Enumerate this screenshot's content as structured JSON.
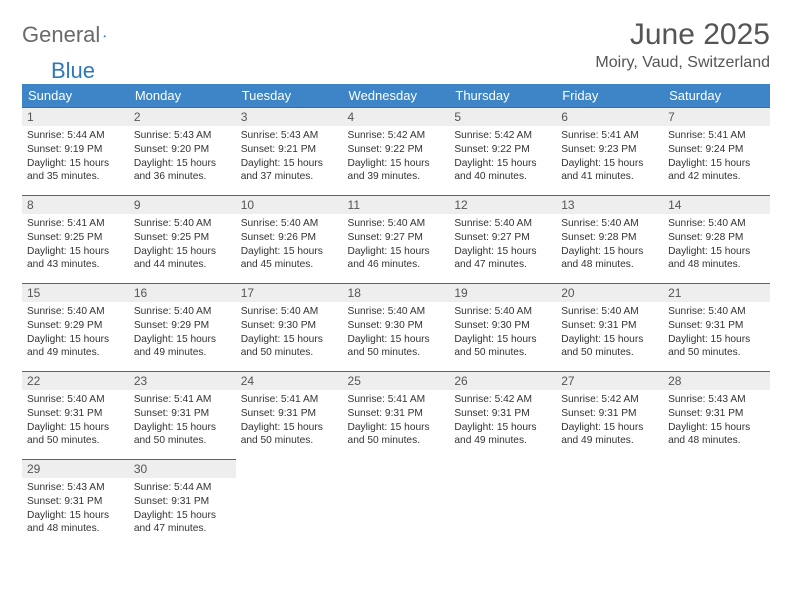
{
  "brand": {
    "part1": "General",
    "part2": "Blue"
  },
  "title": "June 2025",
  "location": "Moiry, Vaud, Switzerland",
  "colors": {
    "header_bg": "#3d85c6",
    "daynum_bg": "#eeeeee",
    "daynum_border": "#2f6fa8",
    "text": "#333333",
    "muted": "#555555",
    "brand_blue": "#2f78bd"
  },
  "weekdays": [
    "Sunday",
    "Monday",
    "Tuesday",
    "Wednesday",
    "Thursday",
    "Friday",
    "Saturday"
  ],
  "days": [
    {
      "n": 1,
      "sr": "5:44 AM",
      "ss": "9:19 PM",
      "dl": "15 hours and 35 minutes."
    },
    {
      "n": 2,
      "sr": "5:43 AM",
      "ss": "9:20 PM",
      "dl": "15 hours and 36 minutes."
    },
    {
      "n": 3,
      "sr": "5:43 AM",
      "ss": "9:21 PM",
      "dl": "15 hours and 37 minutes."
    },
    {
      "n": 4,
      "sr": "5:42 AM",
      "ss": "9:22 PM",
      "dl": "15 hours and 39 minutes."
    },
    {
      "n": 5,
      "sr": "5:42 AM",
      "ss": "9:22 PM",
      "dl": "15 hours and 40 minutes."
    },
    {
      "n": 6,
      "sr": "5:41 AM",
      "ss": "9:23 PM",
      "dl": "15 hours and 41 minutes."
    },
    {
      "n": 7,
      "sr": "5:41 AM",
      "ss": "9:24 PM",
      "dl": "15 hours and 42 minutes."
    },
    {
      "n": 8,
      "sr": "5:41 AM",
      "ss": "9:25 PM",
      "dl": "15 hours and 43 minutes."
    },
    {
      "n": 9,
      "sr": "5:40 AM",
      "ss": "9:25 PM",
      "dl": "15 hours and 44 minutes."
    },
    {
      "n": 10,
      "sr": "5:40 AM",
      "ss": "9:26 PM",
      "dl": "15 hours and 45 minutes."
    },
    {
      "n": 11,
      "sr": "5:40 AM",
      "ss": "9:27 PM",
      "dl": "15 hours and 46 minutes."
    },
    {
      "n": 12,
      "sr": "5:40 AM",
      "ss": "9:27 PM",
      "dl": "15 hours and 47 minutes."
    },
    {
      "n": 13,
      "sr": "5:40 AM",
      "ss": "9:28 PM",
      "dl": "15 hours and 48 minutes."
    },
    {
      "n": 14,
      "sr": "5:40 AM",
      "ss": "9:28 PM",
      "dl": "15 hours and 48 minutes."
    },
    {
      "n": 15,
      "sr": "5:40 AM",
      "ss": "9:29 PM",
      "dl": "15 hours and 49 minutes."
    },
    {
      "n": 16,
      "sr": "5:40 AM",
      "ss": "9:29 PM",
      "dl": "15 hours and 49 minutes."
    },
    {
      "n": 17,
      "sr": "5:40 AM",
      "ss": "9:30 PM",
      "dl": "15 hours and 50 minutes."
    },
    {
      "n": 18,
      "sr": "5:40 AM",
      "ss": "9:30 PM",
      "dl": "15 hours and 50 minutes."
    },
    {
      "n": 19,
      "sr": "5:40 AM",
      "ss": "9:30 PM",
      "dl": "15 hours and 50 minutes."
    },
    {
      "n": 20,
      "sr": "5:40 AM",
      "ss": "9:31 PM",
      "dl": "15 hours and 50 minutes."
    },
    {
      "n": 21,
      "sr": "5:40 AM",
      "ss": "9:31 PM",
      "dl": "15 hours and 50 minutes."
    },
    {
      "n": 22,
      "sr": "5:40 AM",
      "ss": "9:31 PM",
      "dl": "15 hours and 50 minutes."
    },
    {
      "n": 23,
      "sr": "5:41 AM",
      "ss": "9:31 PM",
      "dl": "15 hours and 50 minutes."
    },
    {
      "n": 24,
      "sr": "5:41 AM",
      "ss": "9:31 PM",
      "dl": "15 hours and 50 minutes."
    },
    {
      "n": 25,
      "sr": "5:41 AM",
      "ss": "9:31 PM",
      "dl": "15 hours and 50 minutes."
    },
    {
      "n": 26,
      "sr": "5:42 AM",
      "ss": "9:31 PM",
      "dl": "15 hours and 49 minutes."
    },
    {
      "n": 27,
      "sr": "5:42 AM",
      "ss": "9:31 PM",
      "dl": "15 hours and 49 minutes."
    },
    {
      "n": 28,
      "sr": "5:43 AM",
      "ss": "9:31 PM",
      "dl": "15 hours and 48 minutes."
    },
    {
      "n": 29,
      "sr": "5:43 AM",
      "ss": "9:31 PM",
      "dl": "15 hours and 48 minutes."
    },
    {
      "n": 30,
      "sr": "5:44 AM",
      "ss": "9:31 PM",
      "dl": "15 hours and 47 minutes."
    }
  ],
  "labels": {
    "sunrise": "Sunrise:",
    "sunset": "Sunset:",
    "daylight": "Daylight:"
  }
}
